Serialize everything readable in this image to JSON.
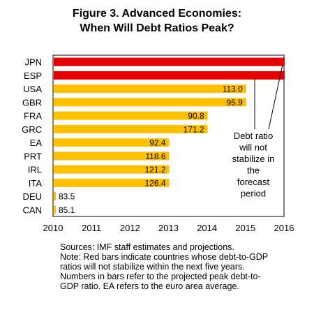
{
  "chart_data": {
    "type": "bar",
    "orientation": "horizontal",
    "title": "Figure 3. Advanced  Economies:",
    "subtitle": "When Will Debt Ratios Peak?",
    "categories": [
      "JPN",
      "ESP",
      "USA",
      "GBR",
      "FRA",
      "GRC",
      "EA",
      "PRT",
      "IRL",
      "ITA",
      "DEU",
      "CAN"
    ],
    "values": [
      2016,
      2016,
      2015,
      2015,
      2014,
      2014,
      2013,
      2013,
      2013,
      2013,
      2010,
      2010
    ],
    "data_labels": [
      "",
      "",
      "113.0",
      "95.9",
      "90.8",
      "171.2",
      "92.4",
      "118.6",
      "121.2",
      "126.4",
      "83.5",
      "85.1"
    ],
    "bar_colors": [
      "#e60000",
      "#e60000",
      "#ffc000",
      "#ffc000",
      "#ffc000",
      "#ffc000",
      "#ffc000",
      "#ffc000",
      "#ffc000",
      "#ffc000",
      "#ffc000",
      "#ffc000"
    ],
    "xlim": [
      2010,
      2016
    ],
    "xticks": [
      "2010",
      "2011",
      "2012",
      "2013",
      "2014",
      "2015",
      "2016"
    ],
    "xlabel": "",
    "ylabel": "",
    "grid": false,
    "annotation": {
      "lines": [
        "Debt ratio",
        "will not",
        "stabilize in",
        "the",
        "forecast",
        "period"
      ],
      "points_to": [
        "JPN",
        "ESP"
      ]
    }
  },
  "notes": {
    "lines": [
      "Sources: IMF staff estimates and projections.",
      "Note: Red bars indicate countries whose debt-to-GDP",
      "ratios will not stabilize within the next five years.",
      "Numbers in bars refer to the projected peak debt-to-",
      "GDP ratio. EA refers to the euro area average."
    ]
  }
}
